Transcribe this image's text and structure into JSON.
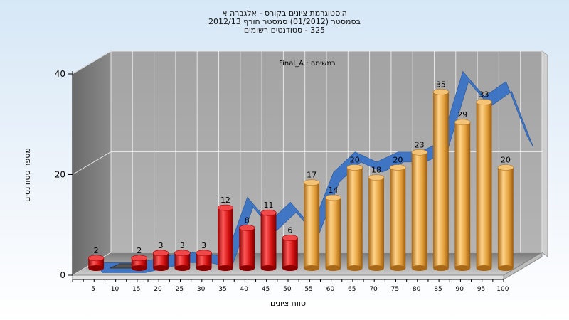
{
  "header": {
    "title_line1": "היסטוגרמת ציונים בקורס - אלגברה א",
    "title_line2": "בסמסטר  (01/2012)  סמסטר חורף 2012/13",
    "title_line3": "325 - סטודנטים רשומים"
  },
  "chart_data": {
    "type": "bar",
    "inset_label": "Final_A : במשימה",
    "xlabel": "טווח ציונים",
    "ylabel": "מספר סטודנטים",
    "ylim": [
      0,
      40
    ],
    "y_ticks": [
      0,
      20,
      40
    ],
    "x_ticks": [
      "5",
      "10",
      "15",
      "20",
      "25",
      "30",
      "35",
      "40",
      "45",
      "50",
      "55",
      "60",
      "65",
      "70",
      "75",
      "80",
      "85",
      "90",
      "95",
      "100"
    ],
    "categories": [
      "5",
      "10",
      "15",
      "20",
      "25",
      "30",
      "35",
      "40",
      "45",
      "50",
      "55",
      "60",
      "65",
      "70",
      "75",
      "80",
      "85",
      "90",
      "95",
      "100"
    ],
    "values": [
      2,
      0,
      2,
      3,
      3,
      3,
      12,
      8,
      11,
      6,
      17,
      14,
      20,
      18,
      20,
      23,
      35,
      29,
      33,
      20
    ],
    "data_labels": [
      "2",
      "",
      "2",
      "3",
      "3",
      "3",
      "12",
      "8",
      "11",
      "6",
      "17",
      "14",
      "20",
      "18",
      "20",
      "23",
      "35",
      "29",
      "33",
      "20"
    ],
    "bar_colors": {
      "fail": "#dd1a1a",
      "pass": "#e8a63a"
    },
    "pass_threshold_category": "55",
    "trend_line": {
      "color": "#3a73c4",
      "values": [
        0,
        0,
        0,
        1,
        2,
        2,
        1,
        13,
        8,
        12,
        7,
        18,
        22,
        20,
        22,
        22,
        24,
        38,
        33,
        36,
        25
      ]
    },
    "grid": true
  }
}
